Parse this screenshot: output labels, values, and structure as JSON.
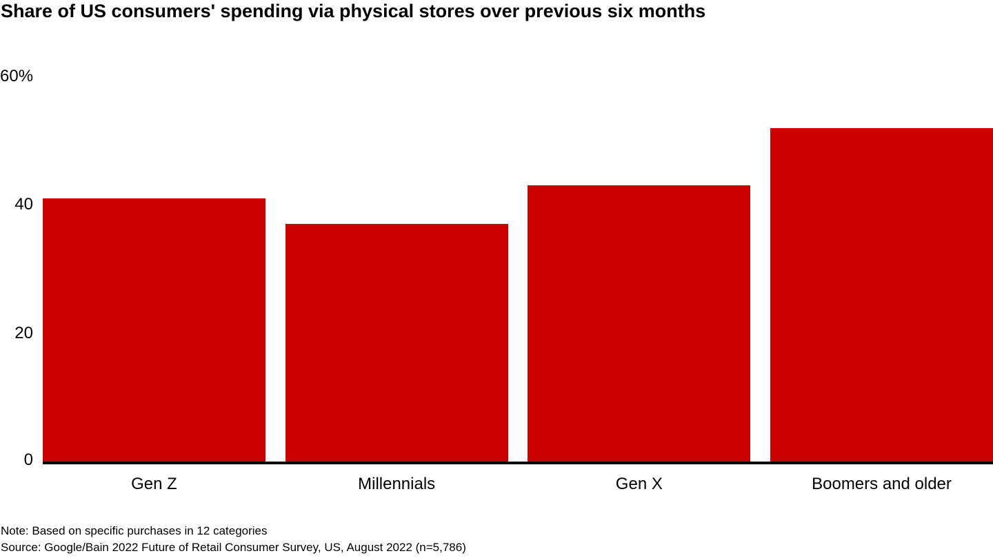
{
  "title": "Share of US consumers' spending via physical stores over previous six months",
  "chart_data": {
    "type": "bar",
    "title": "Share of US consumers' spending via physical stores over previous six months",
    "categories": [
      "Gen Z",
      "Millennials",
      "Gen X",
      "Boomers and older"
    ],
    "values": [
      41,
      37,
      43,
      52
    ],
    "unit": "%",
    "ylim": [
      0,
      60
    ],
    "yticks": [
      {
        "value": 0,
        "label": "0"
      },
      {
        "value": 20,
        "label": "20"
      },
      {
        "value": 40,
        "label": "40"
      },
      {
        "value": 60,
        "label": "60%"
      }
    ],
    "xlabel": "",
    "ylabel": "",
    "grid": false,
    "legend_position": "none",
    "bar_color": "#CC0000",
    "axis_color": "#000000"
  },
  "note": "Note: Based on specific purchases in 12 categories",
  "source": "Source: Google/Bain 2022 Future of Retail Consumer Survey, US, August 2022 (n=5,786)"
}
